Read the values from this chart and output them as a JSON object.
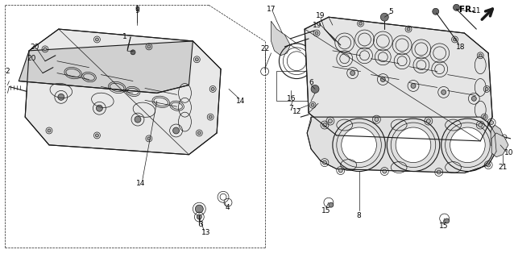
{
  "bg_color": "#ffffff",
  "line_color": "#1a1a1a",
  "label_color": "#000000",
  "fig_width": 6.38,
  "fig_height": 3.2,
  "dpi": 100,
  "gray_fill": "#787878",
  "light_gray": "#c8c8c8",
  "mid_gray": "#a0a0a0",
  "dark_gray": "#505050"
}
